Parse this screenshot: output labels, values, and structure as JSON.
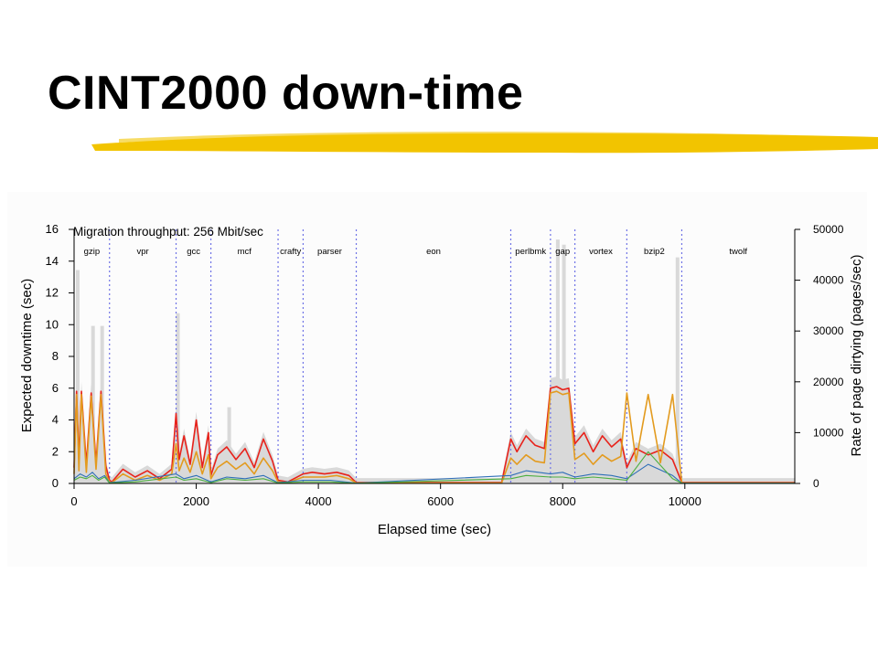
{
  "slide": {
    "title": "CINT2000 down-time",
    "underline_color": "#f2c400"
  },
  "chart_data": {
    "type": "line",
    "title": "Migration throughput: 256 Mbit/sec",
    "xlabel": "Elapsed time (sec)",
    "ylabel": "Expected downtime (sec)",
    "y2label": "Rate of page dirtying (pages/sec)",
    "xlim": [
      0,
      11800
    ],
    "ylim": [
      0,
      16
    ],
    "y2lim": [
      0,
      50000
    ],
    "x_ticks": [
      0,
      2000,
      4000,
      6000,
      8000,
      10000
    ],
    "y_ticks": [
      0,
      2,
      4,
      6,
      8,
      10,
      12,
      14,
      16
    ],
    "y2_ticks": [
      0,
      10000,
      20000,
      30000,
      40000,
      50000
    ],
    "grid": false,
    "colors": {
      "dirty_rate": "#d9d9d9",
      "downtime_high": "#e8221b",
      "downtime_mid": "#e39b1f",
      "downtime_low_a": "#2f6fb8",
      "downtime_low_b": "#4caf3f",
      "divider": "#6f73e6"
    },
    "benchmarks": [
      {
        "name": "gzip",
        "start": 0,
        "end": 580
      },
      {
        "name": "vpr",
        "start": 580,
        "end": 1670
      },
      {
        "name": "gcc",
        "start": 1670,
        "end": 2240
      },
      {
        "name": "mcf",
        "start": 2240,
        "end": 3340
      },
      {
        "name": "crafty",
        "start": 3340,
        "end": 3750
      },
      {
        "name": "parser",
        "start": 3750,
        "end": 4620
      },
      {
        "name": "eon",
        "start": 4620,
        "end": 7150
      },
      {
        "name": "perlbmk",
        "start": 7150,
        "end": 7800
      },
      {
        "name": "gap",
        "start": 7800,
        "end": 8200
      },
      {
        "name": "vortex",
        "start": 8200,
        "end": 9050
      },
      {
        "name": "bzip2",
        "start": 9050,
        "end": 9950
      },
      {
        "name": "twolf",
        "start": 9950,
        "end": 11800
      }
    ],
    "dirty_rate_spikes": [
      {
        "x": 60,
        "y2": 42000
      },
      {
        "x": 310,
        "y2": 31000
      },
      {
        "x": 460,
        "y2": 31000
      },
      {
        "x": 1700,
        "y2": 33500
      },
      {
        "x": 2540,
        "y2": 15000
      },
      {
        "x": 7920,
        "y2": 48000
      },
      {
        "x": 8020,
        "y2": 47000
      },
      {
        "x": 9880,
        "y2": 44500
      }
    ],
    "series": [
      {
        "x": [
          0,
          40,
          80,
          120,
          200,
          280,
          360,
          440,
          520,
          580,
          620,
          800,
          1000,
          1200,
          1400,
          1600,
          1670,
          1720,
          1800,
          1900,
          2000,
          2100,
          2200,
          2240,
          2350,
          2500,
          2650,
          2800,
          2950,
          3100,
          3250,
          3340,
          3500,
          3750,
          3900,
          4100,
          4300,
          4500,
          4620,
          5000,
          6000,
          7000,
          7150,
          7250,
          7400,
          7550,
          7700,
          7800,
          7900,
          8000,
          8100,
          8200,
          8350,
          8500,
          8650,
          8800,
          8950,
          9050,
          9200,
          9400,
          9600,
          9800,
          9950,
          10500,
          11000,
          11800
        ],
        "values": [
          1.0,
          5.8,
          1.5,
          5.8,
          1.2,
          5.7,
          1.3,
          5.8,
          1.1,
          0.2,
          0.1,
          0.9,
          0.4,
          0.8,
          0.3,
          0.9,
          4.4,
          1.5,
          3.0,
          1.2,
          4.0,
          1.0,
          3.2,
          0.5,
          1.8,
          2.3,
          1.5,
          2.2,
          1.0,
          2.8,
          1.4,
          0.2,
          0.1,
          0.6,
          0.7,
          0.6,
          0.7,
          0.5,
          0.05,
          0.05,
          0.05,
          0.05,
          2.8,
          2.0,
          3.0,
          2.4,
          2.2,
          6.0,
          6.1,
          5.9,
          6.0,
          2.5,
          3.2,
          2.0,
          3.0,
          2.3,
          2.8,
          1.0,
          2.2,
          1.8,
          2.1,
          1.5,
          0.05,
          0.05,
          0.05,
          0.05
        ]
      },
      {
        "x": [
          0,
          40,
          80,
          120,
          200,
          280,
          360,
          440,
          520,
          580,
          620,
          800,
          1000,
          1200,
          1400,
          1600,
          1670,
          1720,
          1800,
          1900,
          2000,
          2100,
          2200,
          2240,
          2350,
          2500,
          2650,
          2800,
          2950,
          3100,
          3250,
          3340,
          3500,
          3750,
          3900,
          4100,
          4300,
          4500,
          4620,
          5000,
          6000,
          7000,
          7150,
          7250,
          7400,
          7550,
          7700,
          7800,
          7900,
          8000,
          8100,
          8200,
          8350,
          8500,
          8650,
          8800,
          8950,
          9050,
          9200,
          9400,
          9600,
          9800,
          9950,
          10500,
          11000,
          11800
        ],
        "values": [
          0.6,
          5.6,
          0.8,
          5.6,
          0.7,
          5.5,
          0.9,
          5.6,
          0.6,
          0.1,
          0.05,
          0.6,
          0.2,
          0.5,
          0.2,
          0.6,
          2.5,
          0.8,
          1.6,
          0.7,
          2.0,
          0.6,
          1.8,
          0.3,
          1.0,
          1.4,
          0.9,
          1.3,
          0.6,
          1.6,
          0.8,
          0.1,
          0.05,
          0.4,
          0.4,
          0.4,
          0.5,
          0.3,
          0.03,
          0.03,
          0.03,
          0.03,
          1.6,
          1.2,
          1.8,
          1.4,
          1.3,
          5.7,
          5.8,
          5.6,
          5.7,
          1.5,
          1.9,
          1.2,
          1.8,
          1.4,
          1.7,
          5.7,
          1.4,
          5.6,
          1.3,
          5.6,
          0.03,
          0.03,
          0.03,
          0.03
        ]
      },
      {
        "x": [
          0,
          100,
          200,
          300,
          400,
          500,
          580,
          1000,
          1670,
          1800,
          2000,
          2240,
          2500,
          2800,
          3100,
          3340,
          3750,
          4200,
          4620,
          7150,
          7400,
          7800,
          8000,
          8200,
          8500,
          8800,
          9050,
          9400,
          9800,
          9950,
          11800
        ],
        "values": [
          0.3,
          0.6,
          0.4,
          0.7,
          0.3,
          0.5,
          0.05,
          0.2,
          0.6,
          0.3,
          0.5,
          0.1,
          0.4,
          0.3,
          0.5,
          0.05,
          0.2,
          0.2,
          0.02,
          0.5,
          0.8,
          0.6,
          0.7,
          0.4,
          0.6,
          0.5,
          0.3,
          1.2,
          0.5,
          0.02,
          0.02
        ]
      },
      {
        "x": [
          0,
          100,
          200,
          300,
          400,
          500,
          580,
          1000,
          1670,
          1800,
          2000,
          2240,
          2500,
          2800,
          3100,
          3340,
          3750,
          4200,
          4620,
          7150,
          7400,
          7800,
          8000,
          8200,
          8500,
          8800,
          9050,
          9400,
          9800,
          9950,
          11800
        ],
        "values": [
          0.2,
          0.4,
          0.3,
          0.5,
          0.2,
          0.4,
          0.03,
          0.1,
          0.4,
          0.2,
          0.3,
          0.05,
          0.3,
          0.2,
          0.3,
          0.03,
          0.1,
          0.1,
          0.01,
          0.3,
          0.5,
          0.4,
          0.4,
          0.3,
          0.4,
          0.3,
          0.2,
          2.0,
          0.3,
          0.01,
          0.01
        ]
      }
    ]
  }
}
